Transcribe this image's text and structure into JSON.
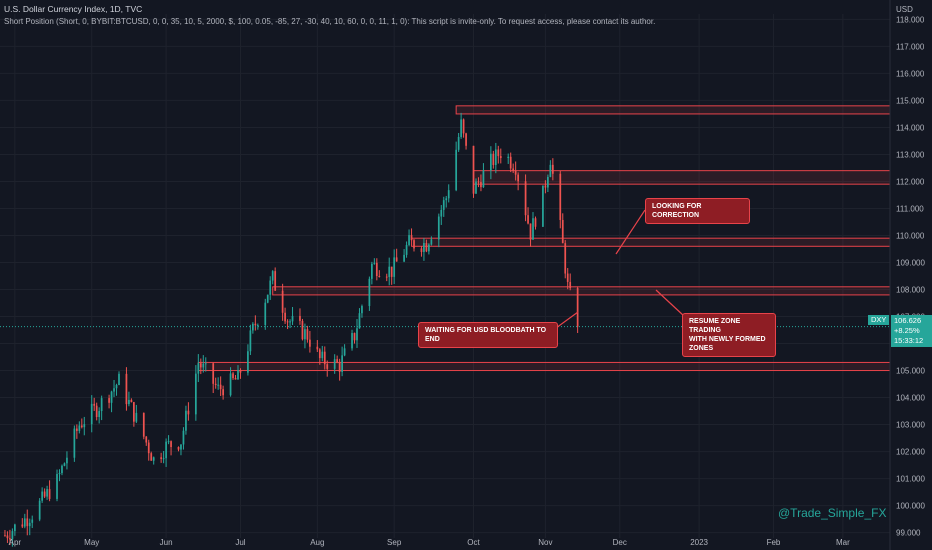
{
  "header": {
    "title": "U.S. Dollar Currency Index, 1D, TVC",
    "script_line": "Short Position (Short, 0, BYBIT:BTCUSD, 0, 0, 35, 10, 5, 2000, $, 100, 0.05, -85, 27, -30, 40, 10, 60, 0, 0, 11, 1, 0): This script is invite-only. To request access, please contact its author."
  },
  "price_axis": {
    "unit": "USD",
    "ticks": [
      "118.000",
      "117.000",
      "116.000",
      "115.000",
      "114.000",
      "113.000",
      "112.000",
      "111.000",
      "110.000",
      "109.000",
      "108.000",
      "107.000",
      "106.000",
      "105.000",
      "104.000",
      "103.000",
      "102.000",
      "101.000",
      "100.000",
      "99.000"
    ]
  },
  "time_axis": {
    "labels": [
      "Apr",
      "May",
      "Jun",
      "Jul",
      "Aug",
      "Sep",
      "Oct",
      "Nov",
      "Dec",
      "2023",
      "Feb",
      "Mar"
    ]
  },
  "price_badge": {
    "symbol": "DXY",
    "price": "106.626",
    "change": "+8.25%",
    "countdown": "15:33:12",
    "symbol_color": "#26a69a",
    "price_color": "#26a69a"
  },
  "annotations": {
    "correction": "LOOKING FOR CORRECTION",
    "resume": "RESUME ZONE TRADING\nWITH NEWLY FORMED\nZONES",
    "waiting": "WAITING FOR USD BLOODBATH TO END"
  },
  "watermark": "@Trade_Simple_FX",
  "colors": {
    "background": "#131722",
    "up": "#26a69a",
    "down": "#ef5350",
    "zone": "#e8434a",
    "grid": "#1e222d"
  },
  "chart_data": {
    "type": "candlestick",
    "symbol": "DXY",
    "ylim": [
      98.8,
      118.2
    ],
    "xlim": [
      "2022-03-26",
      "2023-03-20"
    ],
    "y_ticks": [
      118,
      117,
      116,
      115,
      114,
      113,
      112,
      111,
      110,
      109,
      108,
      107,
      106,
      105,
      104,
      103,
      102,
      101,
      100,
      99
    ],
    "x_ticks": [
      {
        "label": "Apr",
        "date": "2022-04-01"
      },
      {
        "label": "May",
        "date": "2022-05-02"
      },
      {
        "label": "Jun",
        "date": "2022-06-01"
      },
      {
        "label": "Jul",
        "date": "2022-07-01"
      },
      {
        "label": "Aug",
        "date": "2022-08-01"
      },
      {
        "label": "Sep",
        "date": "2022-09-01"
      },
      {
        "label": "Oct",
        "date": "2022-10-03"
      },
      {
        "label": "Nov",
        "date": "2022-11-01"
      },
      {
        "label": "Dec",
        "date": "2022-12-01"
      },
      {
        "label": "2023",
        "date": "2023-01-02"
      },
      {
        "label": "Feb",
        "date": "2023-02-01"
      },
      {
        "label": "Mar",
        "date": "2023-03-01"
      }
    ],
    "last_price": 106.626,
    "close_path": [
      {
        "date": "2022-03-28",
        "close": 98.9
      },
      {
        "date": "2022-04-08",
        "close": 99.7
      },
      {
        "date": "2022-04-18",
        "close": 100.9
      },
      {
        "date": "2022-04-27",
        "close": 103.0
      },
      {
        "date": "2022-05-05",
        "close": 103.7
      },
      {
        "date": "2022-05-13",
        "close": 104.6
      },
      {
        "date": "2022-05-20",
        "close": 103.2
      },
      {
        "date": "2022-05-27",
        "close": 101.7
      },
      {
        "date": "2022-06-01",
        "close": 102.2
      },
      {
        "date": "2022-06-07",
        "close": 102.4
      },
      {
        "date": "2022-06-14",
        "close": 105.3
      },
      {
        "date": "2022-06-22",
        "close": 104.3
      },
      {
        "date": "2022-06-30",
        "close": 104.7
      },
      {
        "date": "2022-07-06",
        "close": 106.5
      },
      {
        "date": "2022-07-14",
        "close": 108.4
      },
      {
        "date": "2022-07-20",
        "close": 106.9
      },
      {
        "date": "2022-07-28",
        "close": 106.3
      },
      {
        "date": "2022-08-02",
        "close": 105.4
      },
      {
        "date": "2022-08-10",
        "close": 105.2
      },
      {
        "date": "2022-08-16",
        "close": 106.3
      },
      {
        "date": "2022-08-23",
        "close": 108.9
      },
      {
        "date": "2022-08-31",
        "close": 108.7
      },
      {
        "date": "2022-09-07",
        "close": 109.7
      },
      {
        "date": "2022-09-14",
        "close": 109.7
      },
      {
        "date": "2022-09-22",
        "close": 111.4
      },
      {
        "date": "2022-09-28",
        "close": 114.1
      },
      {
        "date": "2022-10-03",
        "close": 111.7
      },
      {
        "date": "2022-10-10",
        "close": 112.7
      },
      {
        "date": "2022-10-14",
        "close": 113.1
      },
      {
        "date": "2022-10-20",
        "close": 112.6
      },
      {
        "date": "2022-10-26",
        "close": 110.1
      },
      {
        "date": "2022-10-31",
        "close": 111.5
      },
      {
        "date": "2022-11-03",
        "close": 112.9
      },
      {
        "date": "2022-11-08",
        "close": 109.6
      },
      {
        "date": "2022-11-10",
        "close": 108.1
      },
      {
        "date": "2022-11-14",
        "close": 106.6
      }
    ],
    "zones": [
      {
        "low": 114.5,
        "high": 114.8,
        "from": "2022-09-26"
      },
      {
        "low": 111.9,
        "high": 112.4,
        "from": "2022-10-03"
      },
      {
        "low": 109.6,
        "high": 109.9,
        "from": "2022-09-08"
      },
      {
        "low": 107.8,
        "high": 108.1,
        "from": "2022-07-14"
      },
      {
        "low": 105.0,
        "high": 105.3,
        "from": "2022-06-14"
      }
    ]
  }
}
